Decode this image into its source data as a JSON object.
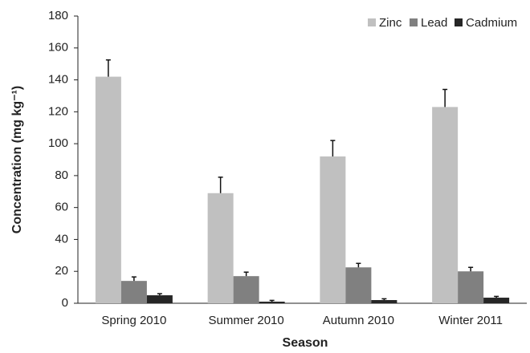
{
  "chart_data": {
    "type": "bar",
    "x_label": "Season",
    "y_label": "Concentration (mg kg⁻¹)",
    "categories": [
      "Spring 2010",
      "Summer 2010",
      "Autumn 2010",
      "Winter 2011"
    ],
    "series": [
      {
        "name": "Zinc",
        "color": "#c0c0c0",
        "values": [
          142,
          69,
          92,
          123
        ],
        "errors": [
          10.5,
          10,
          10,
          11
        ]
      },
      {
        "name": "Lead",
        "color": "#808080",
        "values": [
          14,
          17,
          22.5,
          20
        ],
        "errors": [
          2.5,
          2.5,
          2.5,
          2.5
        ]
      },
      {
        "name": "Cadmium",
        "color": "#262626",
        "values": [
          5,
          1,
          2,
          3.5
        ],
        "errors": [
          1,
          0.8,
          0.8,
          0.8
        ]
      }
    ],
    "ylim": [
      0,
      180
    ],
    "yticks": [
      0,
      20,
      40,
      60,
      80,
      100,
      120,
      140,
      160,
      180
    ],
    "grid": false,
    "legend": "upper right"
  }
}
